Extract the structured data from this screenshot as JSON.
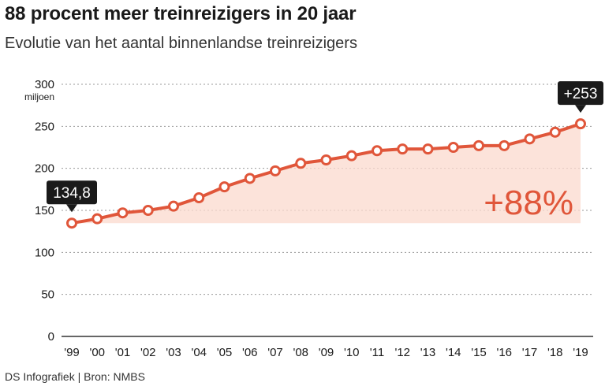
{
  "header": {
    "title": "88 procent meer treinreizigers in 20 jaar",
    "subtitle": "Evolutie van het aantal binnenlandse treinreizigers"
  },
  "footer": {
    "source": "DS Infografiek | Bron: NMBS"
  },
  "colors": {
    "line": "#e0563a",
    "area": "#fbd9cd",
    "callout": "#1a1a1a",
    "grid": "#999999"
  },
  "chart_data": {
    "type": "line",
    "title": "88 procent meer treinreizigers in 20 jaar",
    "subtitle": "Evolutie van het aantal binnenlandse treinreizigers",
    "ylabel": "miljoen",
    "ylim": [
      0,
      300
    ],
    "yticks": [
      "0",
      "50",
      "100",
      "150",
      "200",
      "250",
      "300"
    ],
    "categories": [
      "'99",
      "'00",
      "'01",
      "'02",
      "'03",
      "'04",
      "'05",
      "'06",
      "'07",
      "'08",
      "'09",
      "'10",
      "'11",
      "'12",
      "'13",
      "'14",
      "'15",
      "'16",
      "'17",
      "'18",
      "'19"
    ],
    "values": [
      134.8,
      140,
      147,
      150,
      155,
      165,
      178,
      188,
      197,
      206,
      210,
      215,
      221,
      223,
      223,
      225,
      227,
      227,
      235,
      243,
      253
    ],
    "grid": true,
    "annotations": {
      "start_label": "134,8",
      "end_label": "+253",
      "growth_label": "+88%"
    }
  }
}
